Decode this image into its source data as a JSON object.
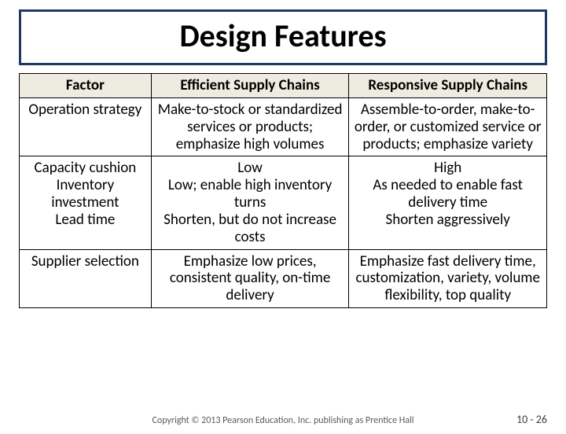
{
  "title": "Design Features",
  "headers": {
    "col1": "Factor",
    "col2": "Efficient Supply Chains",
    "col3": "Responsive Supply Chains"
  },
  "rows": {
    "r1": {
      "factor": "Operation strategy",
      "eff": "Make-to-stock or standardized services or products; emphasize high volumes",
      "resp": "Assemble-to-order, make-to-order, or customized service or products; emphasize variety"
    },
    "r2": {
      "factors": [
        "Capacity cushion",
        "Inventory investment",
        "Lead time"
      ],
      "eff": [
        "Low",
        "Low; enable high inventory turns",
        "Shorten, but do not increase costs"
      ],
      "resp": [
        "High",
        "As needed to enable fast delivery time",
        "Shorten aggressively"
      ]
    },
    "r3": {
      "factor": "Supplier selection",
      "eff": "Emphasize low prices, consistent quality, on-time delivery",
      "resp": "Emphasize fast delivery time, customization, variety, volume flexibility, top quality"
    }
  },
  "copyright": "Copyright © 2013 Pearson Education, Inc. publishing as Prentice Hall",
  "pagenum": "10 - 26",
  "colors": {
    "title_border": "#1f3864",
    "header_bg": "#eeece1",
    "text": "#000000"
  }
}
